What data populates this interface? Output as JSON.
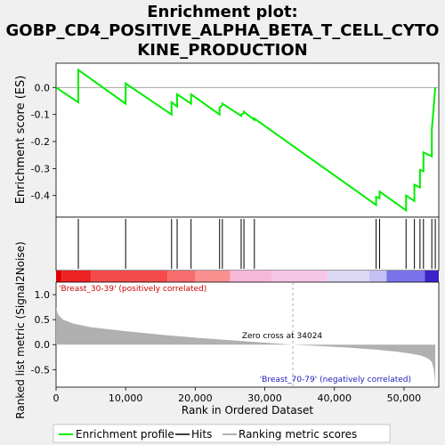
{
  "chart_data": {
    "type": "line",
    "title_lines": [
      "Enrichment plot:",
      "GOBP_CD4_POSITIVE_ALPHA_BETA_T_CELL_CYTO",
      "KINE_PRODUCTION"
    ],
    "top_panel": {
      "ylabel": "Enrichment score (ES)",
      "ylim": [
        -0.48,
        0.09
      ],
      "yticks": [
        0.0,
        -0.1,
        -0.2,
        -0.3,
        -0.4
      ],
      "ytick_labels": [
        "0.0",
        "-0.1",
        "-0.2",
        "-0.3",
        "-0.4"
      ],
      "series": [
        {
          "name": "Enrichment profile",
          "color": "#00ee00",
          "x": [
            0,
            3200,
            3200,
            10000,
            10000,
            16600,
            16600,
            17400,
            17400,
            19400,
            19400,
            23500,
            23500,
            23900,
            23900,
            26600,
            26600,
            27000,
            27000,
            28500,
            28500,
            46000,
            46000,
            46500,
            46500,
            50300,
            50300,
            51500,
            51500,
            52300,
            52300,
            52800,
            52800,
            54000,
            54000,
            54500
          ],
          "y": [
            0.0,
            -0.055,
            0.065,
            -0.06,
            0.015,
            -0.1,
            -0.055,
            -0.07,
            -0.025,
            -0.06,
            -0.025,
            -0.1,
            -0.075,
            -0.065,
            -0.06,
            -0.105,
            -0.1,
            -0.095,
            -0.09,
            -0.12,
            -0.115,
            -0.435,
            -0.405,
            -0.41,
            -0.385,
            -0.455,
            -0.4,
            -0.42,
            -0.36,
            -0.37,
            -0.305,
            -0.31,
            -0.24,
            -0.255,
            -0.155,
            0.0
          ]
        }
      ]
    },
    "hits": {
      "name": "Hits",
      "x": [
        3200,
        10000,
        16600,
        17400,
        19400,
        23500,
        23900,
        26600,
        27000,
        28500,
        46000,
        46500,
        50300,
        51500,
        52300,
        52800,
        54000,
        54500
      ]
    },
    "bottom_panel": {
      "ylabel": "Ranked list metric (Signal2Noise)",
      "ylim": [
        -0.85,
        1.25
      ],
      "yticks": [
        1.0,
        0.5,
        0.0,
        -0.5
      ],
      "ytick_labels": [
        "1.0",
        "0.5",
        "0.0",
        "-0.5"
      ],
      "series": [
        {
          "name": "Ranking metric scores",
          "color": "#b0b0b0",
          "x": [
            0,
            300,
            1000,
            2500,
            5000,
            10000,
            15000,
            20000,
            25000,
            30000,
            34024,
            38000,
            42000,
            46000,
            49000,
            51000,
            52500,
            53500,
            54000,
            54300,
            54500
          ],
          "y": [
            0.75,
            0.6,
            0.5,
            0.42,
            0.35,
            0.27,
            0.2,
            0.14,
            0.09,
            0.04,
            0.0,
            -0.03,
            -0.06,
            -0.1,
            -0.14,
            -0.18,
            -0.22,
            -0.28,
            -0.35,
            -0.5,
            -0.8
          ]
        }
      ],
      "zero_cross_label": "Zero cross at 34024",
      "zero_cross_x": 34024,
      "pos_label": "'Breast_30-39' (positively correlated)",
      "neg_label": "'Breast_70-79' (negatively correlated)"
    },
    "xlabel": "Rank in Ordered Dataset",
    "xlim": [
      0,
      55000
    ],
    "xticks": [
      0,
      10000,
      20000,
      30000,
      40000,
      50000
    ],
    "xtick_labels": [
      "0",
      "10,000",
      "20,000",
      "30,000",
      "40,000",
      "50,000"
    ],
    "color_bar": [
      {
        "x0": 0,
        "x1": 800,
        "color": "#dd0000"
      },
      {
        "x0": 800,
        "x1": 5000,
        "color": "#ee2222"
      },
      {
        "x0": 5000,
        "x1": 16000,
        "color": "#f44a4a"
      },
      {
        "x0": 16000,
        "x1": 20000,
        "color": "#f76c6c"
      },
      {
        "x0": 20000,
        "x1": 25000,
        "color": "#fa9090"
      },
      {
        "x0": 25000,
        "x1": 31000,
        "color": "#f8b8d8"
      },
      {
        "x0": 31000,
        "x1": 39000,
        "color": "#f6c6e6"
      },
      {
        "x0": 39000,
        "x1": 45000,
        "color": "#dcd8f6"
      },
      {
        "x0": 45000,
        "x1": 47500,
        "color": "#c4c0f4"
      },
      {
        "x0": 47500,
        "x1": 53000,
        "color": "#7a72ea"
      },
      {
        "x0": 53000,
        "x1": 55000,
        "color": "#3a22c8"
      }
    ],
    "legend": [
      {
        "label": "Enrichment profile",
        "color": "#00ee00"
      },
      {
        "label": "Hits",
        "color": "#000000"
      },
      {
        "label": "Ranking metric scores",
        "color": "#b0b0b0"
      }
    ]
  }
}
